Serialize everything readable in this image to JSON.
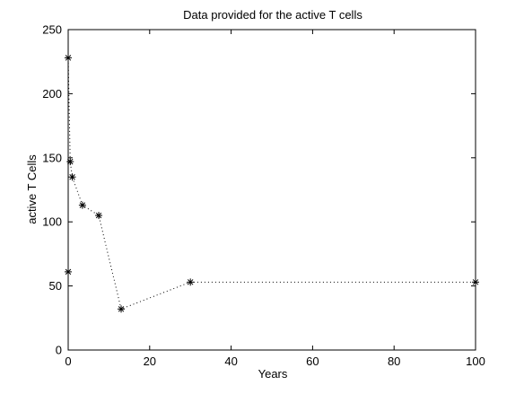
{
  "chart_data": {
    "type": "line",
    "title": "Data provided for the active T cells",
    "xlabel": "Years",
    "ylabel": "active T Cells",
    "xlim": [
      0,
      100
    ],
    "ylim": [
      0,
      250
    ],
    "x_ticks": [
      0,
      20,
      40,
      60,
      80,
      100
    ],
    "y_ticks": [
      0,
      50,
      100,
      150,
      200,
      250
    ],
    "grid": false,
    "line_style": "dotted",
    "marker": "asterisk",
    "colors": {
      "line": "#000000",
      "marker": "#000000",
      "background": "#ffffff"
    },
    "series": [
      {
        "x": [
          0,
          0,
          0.5,
          1,
          3.5,
          7.5,
          13,
          30,
          100
        ],
        "y": [
          61,
          228,
          147,
          135,
          113,
          105,
          32,
          53,
          53
        ]
      }
    ]
  }
}
